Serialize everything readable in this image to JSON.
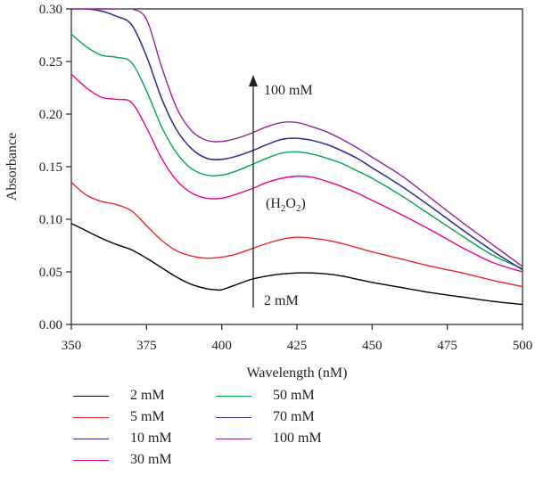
{
  "chart_data": {
    "type": "line",
    "xlabel": "Wavelength (nM)",
    "ylabel": "Absorbance",
    "xlim": [
      350,
      500
    ],
    "ylim": [
      0,
      0.3
    ],
    "xticks": [
      "350",
      "375",
      "400",
      "425",
      "450",
      "475",
      "500"
    ],
    "yticks": [
      "0.00",
      "0.05",
      "0.10",
      "0.15",
      "0.20",
      "0.25",
      "0.30"
    ],
    "grid": false,
    "legend_position": "bottom",
    "annotations": {
      "arrow_top": "100 mM",
      "arrow_bottom": "2 mM",
      "species": "(H2O2)"
    },
    "series": [
      {
        "name": "2 mM",
        "color": "#000000",
        "x": [
          350,
          355,
          360,
          365,
          370,
          375,
          380,
          385,
          390,
          395,
          398,
          400,
          405,
          410,
          415,
          420,
          425,
          430,
          435,
          440,
          445,
          450,
          460,
          470,
          480,
          490,
          500
        ],
        "y": [
          0.096,
          0.089,
          0.082,
          0.076,
          0.071,
          0.063,
          0.054,
          0.045,
          0.038,
          0.034,
          0.033,
          0.033,
          0.038,
          0.043,
          0.046,
          0.048,
          0.049,
          0.049,
          0.048,
          0.046,
          0.043,
          0.04,
          0.035,
          0.03,
          0.026,
          0.022,
          0.019
        ]
      },
      {
        "name": "5 mM",
        "color": "#e8262d",
        "x": [
          350,
          355,
          360,
          365,
          370,
          375,
          380,
          385,
          390,
          395,
          400,
          405,
          410,
          415,
          420,
          425,
          430,
          435,
          440,
          445,
          450,
          460,
          470,
          480,
          490,
          500
        ],
        "y": [
          0.135,
          0.123,
          0.117,
          0.114,
          0.108,
          0.094,
          0.08,
          0.07,
          0.065,
          0.063,
          0.064,
          0.067,
          0.072,
          0.077,
          0.081,
          0.083,
          0.082,
          0.08,
          0.077,
          0.073,
          0.069,
          0.062,
          0.055,
          0.049,
          0.042,
          0.036
        ]
      },
      {
        "name": "10 mM",
        "color": "#2e3192",
        "x": [
          350,
          355,
          360,
          365,
          370,
          375,
          380,
          385,
          390,
          395,
          400,
          405,
          410,
          415,
          420,
          425,
          430,
          435,
          440,
          445,
          450,
          460,
          470,
          480,
          490,
          500
        ],
        "y": [
          0.3,
          0.3,
          0.298,
          0.293,
          0.285,
          0.255,
          0.215,
          0.185,
          0.167,
          0.158,
          0.157,
          0.16,
          0.165,
          0.171,
          0.176,
          0.177,
          0.175,
          0.171,
          0.165,
          0.158,
          0.149,
          0.131,
          0.111,
          0.09,
          0.07,
          0.052
        ]
      },
      {
        "name": "30 mM",
        "color": "#ec008c",
        "x": [
          350,
          355,
          360,
          365,
          370,
          375,
          380,
          385,
          390,
          395,
          400,
          405,
          410,
          415,
          420,
          425,
          430,
          435,
          440,
          445,
          450,
          460,
          470,
          480,
          490,
          500
        ],
        "y": [
          0.238,
          0.225,
          0.216,
          0.214,
          0.211,
          0.187,
          0.158,
          0.137,
          0.125,
          0.12,
          0.12,
          0.124,
          0.129,
          0.135,
          0.139,
          0.141,
          0.14,
          0.136,
          0.131,
          0.125,
          0.118,
          0.104,
          0.089,
          0.073,
          0.059,
          0.05
        ]
      },
      {
        "name": "50 mM",
        "color": "#00a651",
        "x": [
          350,
          355,
          360,
          365,
          370,
          375,
          380,
          385,
          390,
          395,
          400,
          405,
          410,
          415,
          420,
          425,
          430,
          435,
          440,
          445,
          450,
          460,
          470,
          480,
          490,
          500
        ],
        "y": [
          0.276,
          0.264,
          0.256,
          0.254,
          0.249,
          0.222,
          0.188,
          0.163,
          0.148,
          0.142,
          0.142,
          0.146,
          0.152,
          0.158,
          0.163,
          0.164,
          0.162,
          0.158,
          0.153,
          0.146,
          0.139,
          0.122,
          0.103,
          0.084,
          0.066,
          0.053
        ]
      },
      {
        "name": "70 mM",
        "color": "#2e3192",
        "x": [
          350,
          355,
          360,
          365,
          370,
          375,
          380,
          385,
          390,
          395,
          400,
          405,
          410,
          415,
          420,
          425,
          430,
          435,
          440,
          445,
          450,
          460,
          470,
          480,
          490,
          500
        ],
        "y": [
          0.3,
          0.3,
          0.298,
          0.293,
          0.285,
          0.255,
          0.215,
          0.185,
          0.167,
          0.158,
          0.157,
          0.16,
          0.165,
          0.171,
          0.176,
          0.177,
          0.175,
          0.171,
          0.165,
          0.158,
          0.149,
          0.131,
          0.111,
          0.09,
          0.07,
          0.052
        ]
      },
      {
        "name": "100 mM",
        "color": "#92278f",
        "x": [
          350,
          355,
          360,
          365,
          370,
          375,
          380,
          385,
          390,
          395,
          400,
          405,
          410,
          415,
          420,
          425,
          430,
          435,
          440,
          445,
          450,
          460,
          470,
          480,
          490,
          500
        ],
        "y": [
          0.3,
          0.3,
          0.3,
          0.3,
          0.3,
          0.29,
          0.245,
          0.206,
          0.184,
          0.175,
          0.174,
          0.177,
          0.182,
          0.188,
          0.192,
          0.192,
          0.188,
          0.183,
          0.176,
          0.168,
          0.159,
          0.141,
          0.119,
          0.097,
          0.076,
          0.055
        ]
      }
    ],
    "legend": [
      {
        "label": "2 mM",
        "color": "#000000"
      },
      {
        "label": "5 mM",
        "color": "#e8262d"
      },
      {
        "label": "10 mM",
        "color": "#2e3192"
      },
      {
        "label": "30 mM",
        "color": "#ec008c"
      },
      {
        "label": "50 mM",
        "color": "#00a651"
      },
      {
        "label": "70 mM",
        "color": "#2e3192"
      },
      {
        "label": "100 mM",
        "color": "#92278f"
      }
    ]
  }
}
